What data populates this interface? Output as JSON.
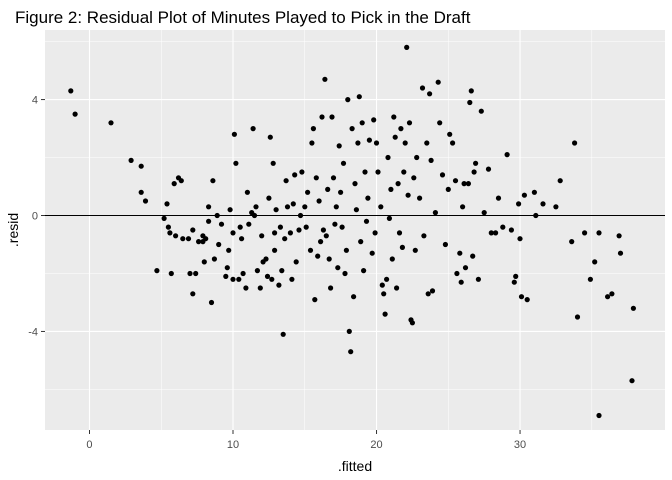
{
  "chart_data": {
    "type": "scatter",
    "title": "Figure 2: Residual Plot of Minutes Played to Pick in the Draft",
    "xlabel": ".fitted",
    "ylabel": ".resid",
    "xlim": [
      -3.1,
      40.1
    ],
    "ylim": [
      -7.4,
      6.4
    ],
    "x_ticks": [
      0,
      10,
      20,
      30
    ],
    "y_ticks": [
      -4,
      0,
      4
    ],
    "x_tick_labels": [
      "0",
      "10",
      "20",
      "30"
    ],
    "y_tick_labels": [
      "-4",
      "0",
      "4"
    ],
    "reference_line_y": 0,
    "grid": true,
    "panel_background": "#ebebeb",
    "grid_major_color": "#ffffff",
    "point_color": "#000000",
    "points": [
      [
        -1.3,
        4.3
      ],
      [
        -1.0,
        3.5
      ],
      [
        1.5,
        3.2
      ],
      [
        2.9,
        1.9
      ],
      [
        3.6,
        1.7
      ],
      [
        3.6,
        0.8
      ],
      [
        3.9,
        0.5
      ],
      [
        4.7,
        -1.9
      ],
      [
        5.2,
        -0.1
      ],
      [
        5.4,
        0.4
      ],
      [
        5.5,
        -0.4
      ],
      [
        5.6,
        -0.6
      ],
      [
        5.7,
        -2.0
      ],
      [
        5.9,
        1.1
      ],
      [
        6.0,
        -0.7
      ],
      [
        6.2,
        1.3
      ],
      [
        6.4,
        1.2
      ],
      [
        6.5,
        -0.8
      ],
      [
        6.9,
        -0.8
      ],
      [
        7.0,
        -2.0
      ],
      [
        7.2,
        -2.7
      ],
      [
        7.2,
        -0.5
      ],
      [
        7.4,
        -2.0
      ],
      [
        7.6,
        -0.9
      ],
      [
        7.9,
        -0.7
      ],
      [
        7.9,
        -0.9
      ],
      [
        8.0,
        -1.6
      ],
      [
        8.1,
        -0.8
      ],
      [
        8.3,
        -0.2
      ],
      [
        8.3,
        0.3
      ],
      [
        8.5,
        -3.0
      ],
      [
        8.6,
        1.2
      ],
      [
        8.7,
        -1.5
      ],
      [
        8.9,
        0.0
      ],
      [
        9.0,
        -1.0
      ],
      [
        9.2,
        -0.3
      ],
      [
        9.5,
        -2.1
      ],
      [
        9.6,
        -1.8
      ],
      [
        9.7,
        -1.2
      ],
      [
        9.8,
        0.2
      ],
      [
        10.0,
        -0.6
      ],
      [
        10.0,
        -2.2
      ],
      [
        10.1,
        2.8
      ],
      [
        10.2,
        1.8
      ],
      [
        10.4,
        -2.2
      ],
      [
        10.5,
        -0.4
      ],
      [
        10.6,
        -0.8
      ],
      [
        10.7,
        -2.0
      ],
      [
        10.9,
        -2.5
      ],
      [
        11.0,
        0.8
      ],
      [
        11.1,
        -0.3
      ],
      [
        11.3,
        0.1
      ],
      [
        11.4,
        3.0
      ],
      [
        11.5,
        0.0
      ],
      [
        11.6,
        0.3
      ],
      [
        11.7,
        -1.9
      ],
      [
        11.9,
        -2.5
      ],
      [
        12.0,
        -0.7
      ],
      [
        12.1,
        -1.6
      ],
      [
        12.3,
        -1.5
      ],
      [
        12.4,
        -2.1
      ],
      [
        12.5,
        0.6
      ],
      [
        12.6,
        2.7
      ],
      [
        12.7,
        -2.2
      ],
      [
        12.8,
        1.8
      ],
      [
        12.9,
        -0.6
      ],
      [
        12.9,
        -1.2
      ],
      [
        13.0,
        0.2
      ],
      [
        13.2,
        -2.4
      ],
      [
        13.3,
        -0.4
      ],
      [
        13.4,
        -1.9
      ],
      [
        13.5,
        -4.1
      ],
      [
        13.6,
        -0.8
      ],
      [
        13.7,
        1.2
      ],
      [
        13.8,
        0.3
      ],
      [
        14.0,
        -0.6
      ],
      [
        14.1,
        -2.2
      ],
      [
        14.2,
        0.4
      ],
      [
        14.3,
        1.4
      ],
      [
        14.4,
        -1.6
      ],
      [
        14.6,
        -0.5
      ],
      [
        14.7,
        0.0
      ],
      [
        14.8,
        1.5
      ],
      [
        15.0,
        0.3
      ],
      [
        15.1,
        -0.4
      ],
      [
        15.2,
        0.8
      ],
      [
        15.4,
        -1.2
      ],
      [
        15.5,
        2.5
      ],
      [
        15.6,
        3.0
      ],
      [
        15.7,
        -2.9
      ],
      [
        15.8,
        1.3
      ],
      [
        15.9,
        -1.4
      ],
      [
        16.0,
        0.5
      ],
      [
        16.1,
        -0.9
      ],
      [
        16.2,
        3.4
      ],
      [
        16.3,
        -0.5
      ],
      [
        16.4,
        4.7
      ],
      [
        16.5,
        -0.7
      ],
      [
        16.6,
        0.9
      ],
      [
        16.7,
        -1.5
      ],
      [
        16.8,
        -2.5
      ],
      [
        16.9,
        3.4
      ],
      [
        17.0,
        1.3
      ],
      [
        17.1,
        -0.3
      ],
      [
        17.2,
        0.3
      ],
      [
        17.3,
        -1.8
      ],
      [
        17.4,
        2.4
      ],
      [
        17.5,
        0.8
      ],
      [
        17.6,
        -0.4
      ],
      [
        17.7,
        1.8
      ],
      [
        17.8,
        -2.0
      ],
      [
        17.9,
        -1.2
      ],
      [
        18.0,
        4.0
      ],
      [
        18.1,
        -4.0
      ],
      [
        18.2,
        -4.7
      ],
      [
        18.3,
        3.0
      ],
      [
        18.4,
        -2.8
      ],
      [
        18.5,
        1.1
      ],
      [
        18.6,
        0.2
      ],
      [
        18.7,
        2.5
      ],
      [
        18.8,
        4.1
      ],
      [
        18.9,
        -0.9
      ],
      [
        19.0,
        3.2
      ],
      [
        19.1,
        -1.9
      ],
      [
        19.2,
        1.5
      ],
      [
        19.3,
        -0.2
      ],
      [
        19.4,
        0.6
      ],
      [
        19.5,
        2.6
      ],
      [
        19.7,
        -1.3
      ],
      [
        19.8,
        3.3
      ],
      [
        19.9,
        -0.6
      ],
      [
        20.0,
        2.5
      ],
      [
        20.1,
        1.5
      ],
      [
        20.3,
        0.3
      ],
      [
        20.4,
        -2.4
      ],
      [
        20.5,
        -2.7
      ],
      [
        20.6,
        -3.4
      ],
      [
        20.7,
        -2.2
      ],
      [
        20.8,
        2.0
      ],
      [
        20.9,
        -0.1
      ],
      [
        21.0,
        0.9
      ],
      [
        21.1,
        -1.5
      ],
      [
        21.2,
        3.4
      ],
      [
        21.3,
        2.7
      ],
      [
        21.4,
        -2.5
      ],
      [
        21.5,
        1.1
      ],
      [
        21.6,
        -0.6
      ],
      [
        21.7,
        3.0
      ],
      [
        21.8,
        -1.1
      ],
      [
        21.9,
        1.5
      ],
      [
        22.0,
        2.5
      ],
      [
        22.1,
        5.8
      ],
      [
        22.2,
        0.7
      ],
      [
        22.3,
        3.2
      ],
      [
        22.4,
        -3.6
      ],
      [
        22.5,
        -3.7
      ],
      [
        22.6,
        1.3
      ],
      [
        22.7,
        -1.2
      ],
      [
        22.8,
        2.0
      ],
      [
        23.0,
        0.6
      ],
      [
        23.2,
        4.4
      ],
      [
        23.3,
        -0.7
      ],
      [
        23.5,
        2.5
      ],
      [
        23.6,
        -2.7
      ],
      [
        23.7,
        4.2
      ],
      [
        23.8,
        1.9
      ],
      [
        23.9,
        -2.6
      ],
      [
        24.1,
        0.1
      ],
      [
        24.3,
        4.6
      ],
      [
        24.4,
        3.2
      ],
      [
        24.6,
        1.4
      ],
      [
        24.8,
        -1.0
      ],
      [
        25.0,
        0.9
      ],
      [
        25.1,
        2.8
      ],
      [
        25.3,
        2.5
      ],
      [
        25.5,
        1.2
      ],
      [
        25.6,
        -2.0
      ],
      [
        25.8,
        -1.3
      ],
      [
        25.9,
        -2.3
      ],
      [
        26.0,
        0.3
      ],
      [
        26.1,
        1.1
      ],
      [
        26.2,
        -1.8
      ],
      [
        26.4,
        1.1
      ],
      [
        26.5,
        3.9
      ],
      [
        26.6,
        4.3
      ],
      [
        26.7,
        -1.4
      ],
      [
        26.8,
        1.5
      ],
      [
        26.9,
        1.8
      ],
      [
        27.1,
        -2.2
      ],
      [
        27.3,
        3.6
      ],
      [
        27.5,
        0.1
      ],
      [
        27.8,
        1.6
      ],
      [
        28.0,
        -0.6
      ],
      [
        28.3,
        -0.6
      ],
      [
        28.5,
        0.6
      ],
      [
        28.8,
        -0.4
      ],
      [
        29.1,
        2.1
      ],
      [
        29.4,
        -0.5
      ],
      [
        29.6,
        -2.3
      ],
      [
        29.7,
        -2.1
      ],
      [
        29.9,
        0.4
      ],
      [
        30.0,
        -0.8
      ],
      [
        30.1,
        -2.8
      ],
      [
        30.3,
        0.7
      ],
      [
        30.5,
        -2.9
      ],
      [
        31.0,
        0.8
      ],
      [
        31.1,
        0.0
      ],
      [
        31.6,
        0.4
      ],
      [
        32.5,
        0.3
      ],
      [
        32.8,
        1.2
      ],
      [
        33.6,
        -0.9
      ],
      [
        33.8,
        2.5
      ],
      [
        34.0,
        -3.5
      ],
      [
        34.5,
        -0.6
      ],
      [
        34.9,
        -2.2
      ],
      [
        35.2,
        -1.6
      ],
      [
        35.5,
        -6.9
      ],
      [
        35.5,
        -0.6
      ],
      [
        36.1,
        -2.8
      ],
      [
        36.4,
        -2.7
      ],
      [
        36.9,
        -0.7
      ],
      [
        37.0,
        -1.3
      ],
      [
        37.8,
        -5.7
      ],
      [
        37.9,
        -3.2
      ]
    ]
  }
}
